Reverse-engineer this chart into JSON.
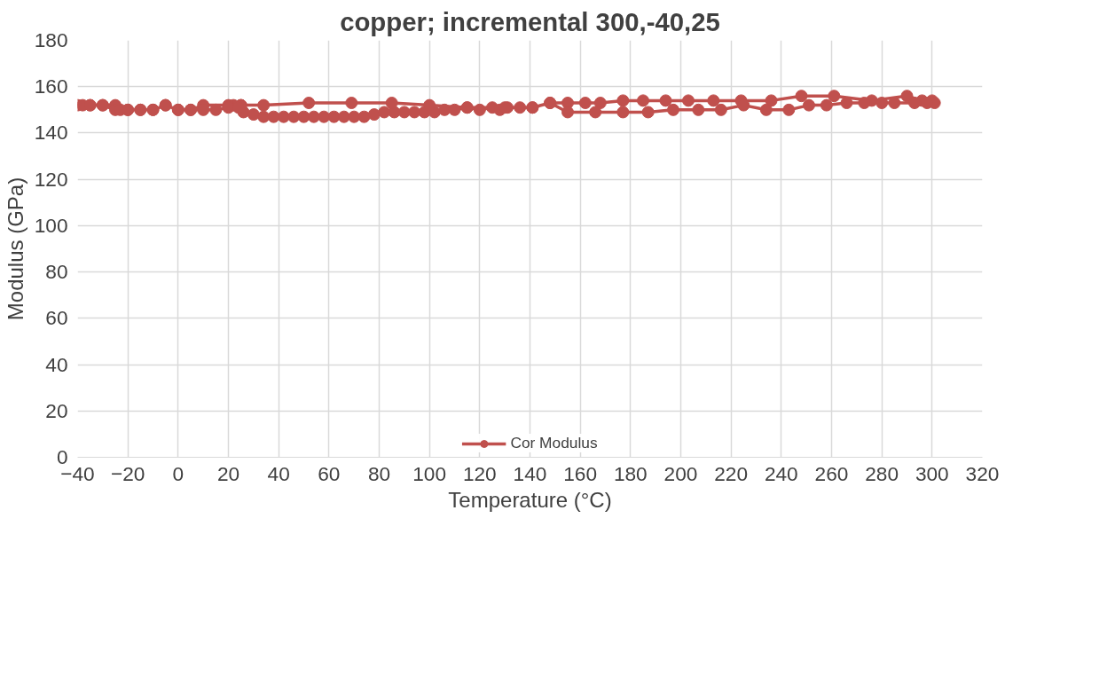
{
  "chart_data": {
    "type": "line",
    "title": "copper; incremental 300,-40,25",
    "xlabel": "Temperature (°C)",
    "ylabel": "Modulus (GPa)",
    "xlim": [
      -40,
      320
    ],
    "xticks": [
      -40,
      -20,
      0,
      20,
      40,
      60,
      80,
      100,
      120,
      140,
      160,
      180,
      200,
      220,
      240,
      260,
      280,
      300,
      320
    ],
    "ylim": [
      0,
      180
    ],
    "yticks": [
      0,
      20,
      40,
      60,
      80,
      100,
      120,
      140,
      160,
      180
    ],
    "grid": true,
    "legend": "bottom",
    "marker": "circle",
    "line_style": "solid",
    "series": [
      {
        "name": "Cor Modulus",
        "color": "#c0504d",
        "x": [
          25,
          26,
          30,
          34,
          38,
          42,
          46,
          50,
          54,
          58,
          62,
          66,
          70,
          74,
          78,
          82,
          86,
          90,
          94,
          98,
          102,
          106,
          110,
          115,
          120,
          125,
          128,
          131,
          136,
          141,
          148,
          155,
          162,
          168,
          177,
          185,
          194,
          203,
          213,
          224,
          236,
          248,
          261,
          276,
          290,
          296,
          300,
          301,
          298,
          293,
          285,
          280,
          273,
          266,
          258,
          251,
          243,
          234,
          225,
          216,
          207,
          197,
          187,
          177,
          166,
          155,
          148,
          141,
          130,
          115,
          100,
          85,
          69,
          52,
          34,
          25,
          22,
          20,
          10,
          5,
          0,
          -5,
          -10,
          -15,
          -20,
          -25,
          -30,
          -35,
          -40,
          -38,
          -35,
          -30,
          -25,
          -23,
          -20,
          -15,
          -10,
          -5,
          0,
          5,
          10,
          15,
          20,
          24
        ],
        "values": [
          152,
          149,
          148,
          147,
          147,
          147,
          147,
          147,
          147,
          147,
          147,
          147,
          147,
          147,
          148,
          149,
          149,
          149,
          149,
          149,
          149,
          150,
          150,
          151,
          150,
          151,
          150,
          151,
          151,
          151,
          153,
          153,
          153,
          153,
          154,
          154,
          154,
          154,
          154,
          154,
          154,
          156,
          156,
          154,
          156,
          154,
          154,
          153,
          153,
          153,
          153,
          153,
          153,
          153,
          152,
          152,
          150,
          150,
          152,
          150,
          150,
          150,
          149,
          149,
          149,
          149,
          153,
          151,
          151,
          151,
          152,
          153,
          153,
          153,
          152,
          152,
          152,
          152,
          152,
          150,
          150,
          152,
          150,
          150,
          150,
          152,
          152,
          152,
          152,
          152,
          152,
          152,
          150,
          150,
          150,
          150,
          150,
          152,
          150,
          150,
          150,
          150,
          151,
          151
        ]
      }
    ]
  }
}
